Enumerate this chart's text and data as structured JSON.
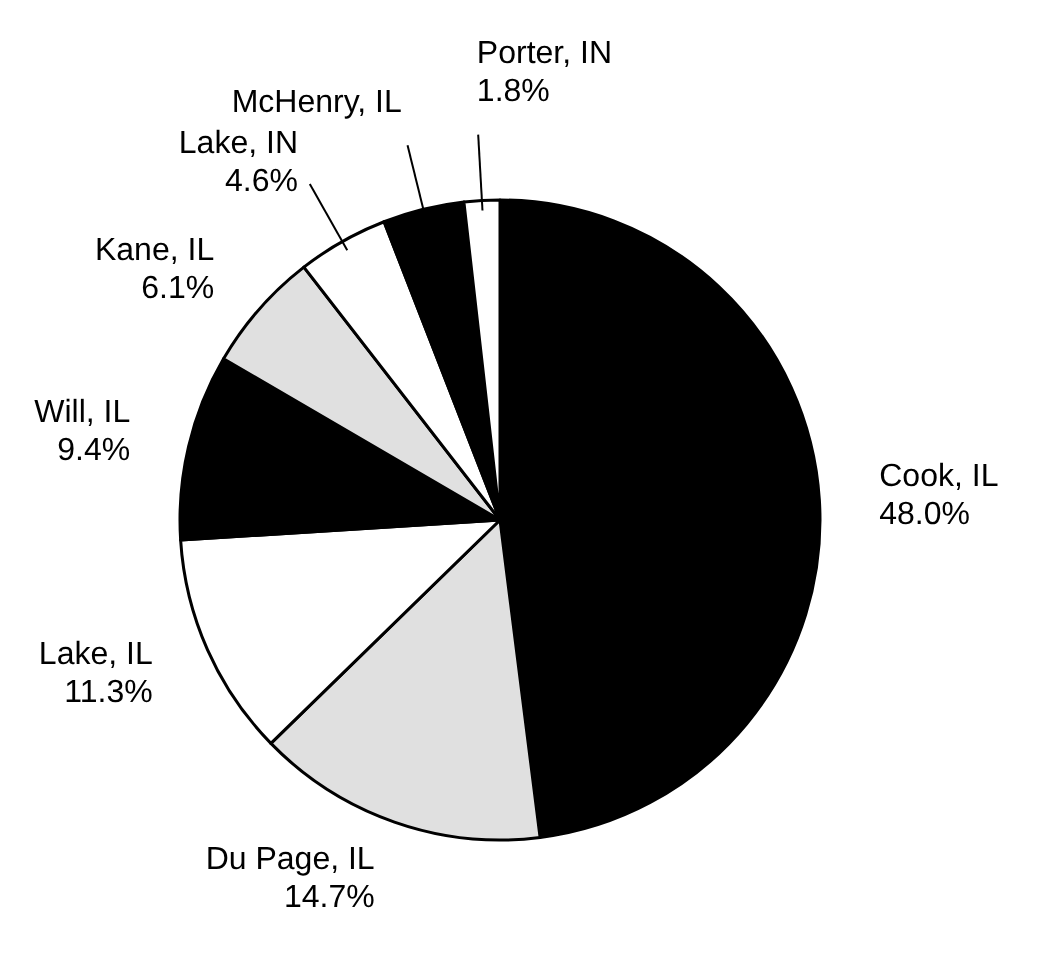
{
  "chart_data": {
    "type": "pie",
    "categories": [
      "Cook, IL",
      "Du Page, IL",
      "Lake, IL",
      "Will, IL",
      "Kane, IL",
      "Lake, IN",
      "McHenry, IL",
      "Porter, IN"
    ],
    "values": [
      48.0,
      14.7,
      11.3,
      9.4,
      6.1,
      4.6,
      4.1,
      1.8
    ],
    "value_labels": [
      "48.0%",
      "14.7%",
      "11.3%",
      "9.4%",
      "6.1%",
      "4.6%",
      null,
      "1.8%"
    ],
    "colors": [
      "#000000",
      "#e0e0e0",
      "#ffffff",
      "#000000",
      "#e0e0e0",
      "#ffffff",
      "#000000",
      "#ffffff"
    ]
  }
}
